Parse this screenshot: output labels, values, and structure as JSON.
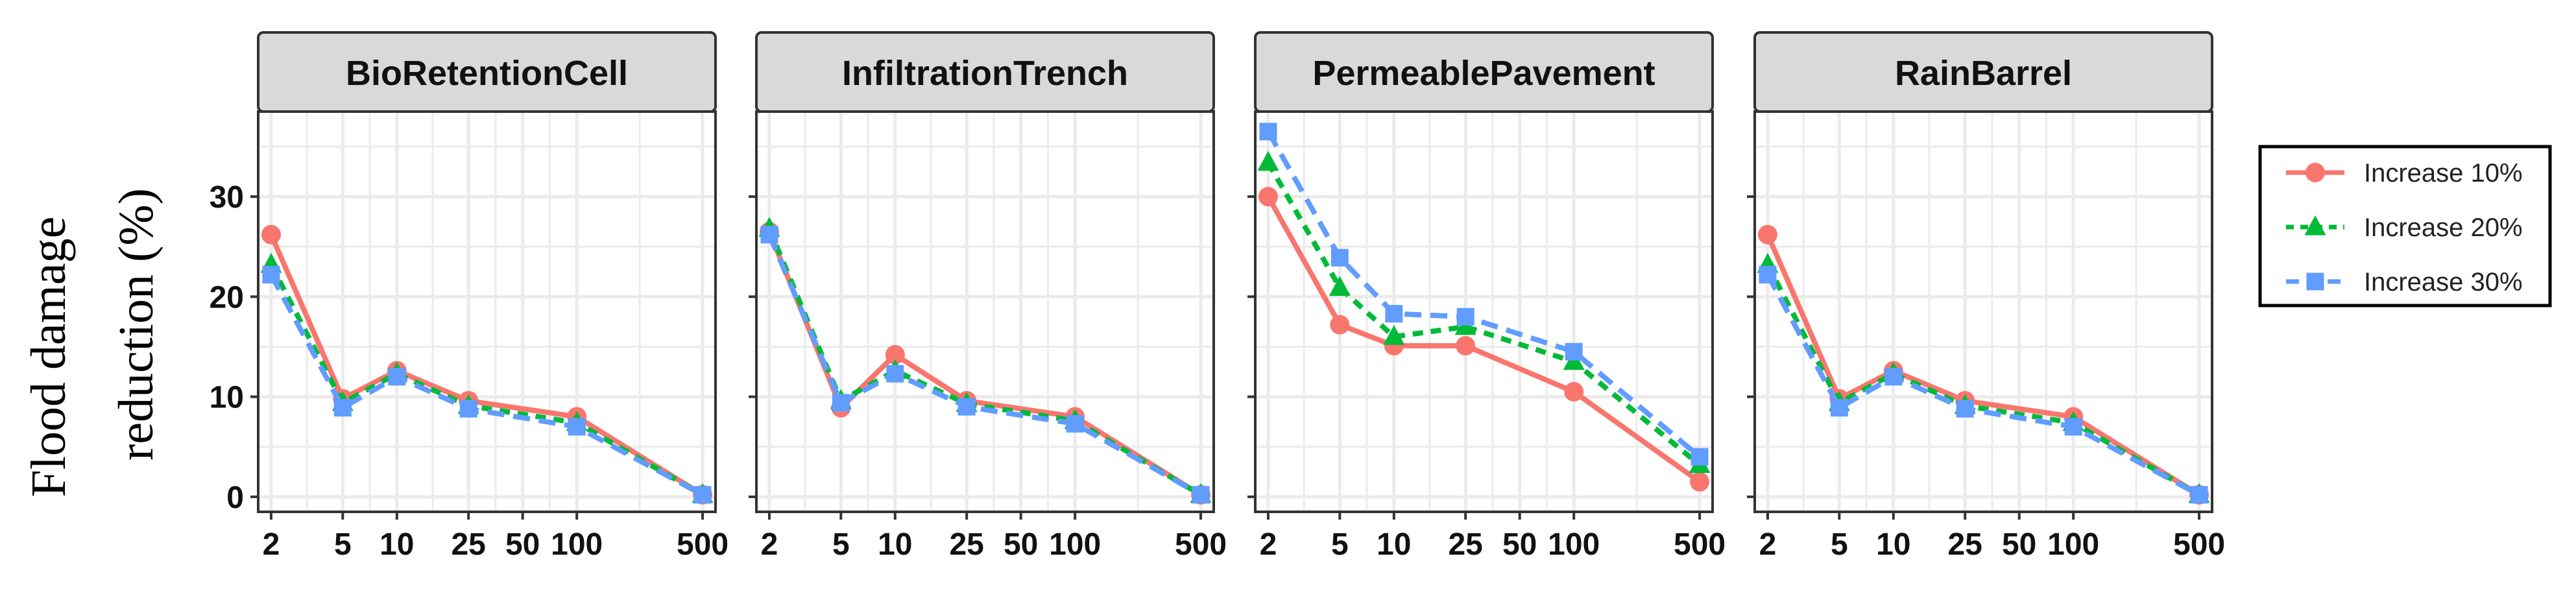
{
  "colors": {
    "series": [
      "#F8766D",
      "#00BA38",
      "#619CFF"
    ],
    "strip_fill": "#D9D9D9",
    "panel_border": "#333333",
    "grid": "#EBEBEB",
    "text": "#000000"
  },
  "figure": {
    "ylabel_line1": "Flood damage",
    "ylabel_line2": "reduction (%)"
  },
  "chart_data": {
    "type": "line",
    "x_scale": "log",
    "x": [
      2,
      5,
      10,
      25,
      50,
      100,
      500
    ],
    "x_tick_labels": [
      "2",
      "5",
      "10",
      "25",
      "50",
      "100",
      "500"
    ],
    "y_ticks": [
      0,
      10,
      20,
      30
    ],
    "ylim": [
      -1.5,
      38.5
    ],
    "grid": true,
    "legend_position": "right",
    "legend": [
      "Increase 10%",
      "Increase 20%",
      "Increase 30%"
    ],
    "panels": [
      {
        "title": "BioRetentionCell",
        "series": [
          {
            "name": "Increase 10%",
            "values": [
              26.2,
              9.8,
              12.6,
              9.6,
              null,
              8.0,
              0.2
            ]
          },
          {
            "name": "Increase 20%",
            "values": [
              23.2,
              9.4,
              12.3,
              9.1,
              null,
              7.4,
              0.2
            ]
          },
          {
            "name": "Increase 30%",
            "values": [
              22.2,
              8.9,
              12.0,
              8.8,
              null,
              7.0,
              0.2
            ]
          }
        ]
      },
      {
        "title": "InfiltrationTrench",
        "series": [
          {
            "name": "Increase 10%",
            "values": [
              26.5,
              8.9,
              14.2,
              9.6,
              null,
              8.0,
              0.2
            ]
          },
          {
            "name": "Increase 20%",
            "values": [
              26.8,
              9.6,
              12.6,
              9.3,
              null,
              7.6,
              0.2
            ]
          },
          {
            "name": "Increase 30%",
            "values": [
              26.2,
              9.4,
              12.3,
              9.0,
              null,
              7.3,
              0.2
            ]
          }
        ]
      },
      {
        "title": "PermeablePavement",
        "series": [
          {
            "name": "Increase 10%",
            "values": [
              30.0,
              17.2,
              15.1,
              15.1,
              null,
              10.5,
              1.5
            ]
          },
          {
            "name": "Increase 20%",
            "values": [
              33.4,
              20.9,
              16.0,
              17.0,
              null,
              13.5,
              3.2
            ]
          },
          {
            "name": "Increase 30%",
            "values": [
              36.5,
              23.9,
              18.3,
              18.0,
              null,
              14.5,
              4.0
            ]
          }
        ]
      },
      {
        "title": "RainBarrel",
        "series": [
          {
            "name": "Increase 10%",
            "values": [
              26.2,
              9.8,
              12.6,
              9.6,
              null,
              8.0,
              0.2
            ]
          },
          {
            "name": "Increase 20%",
            "values": [
              23.2,
              9.4,
              12.3,
              9.1,
              null,
              7.4,
              0.2
            ]
          },
          {
            "name": "Increase 30%",
            "values": [
              22.2,
              8.9,
              12.0,
              8.8,
              null,
              7.0,
              0.2
            ]
          }
        ]
      }
    ]
  }
}
